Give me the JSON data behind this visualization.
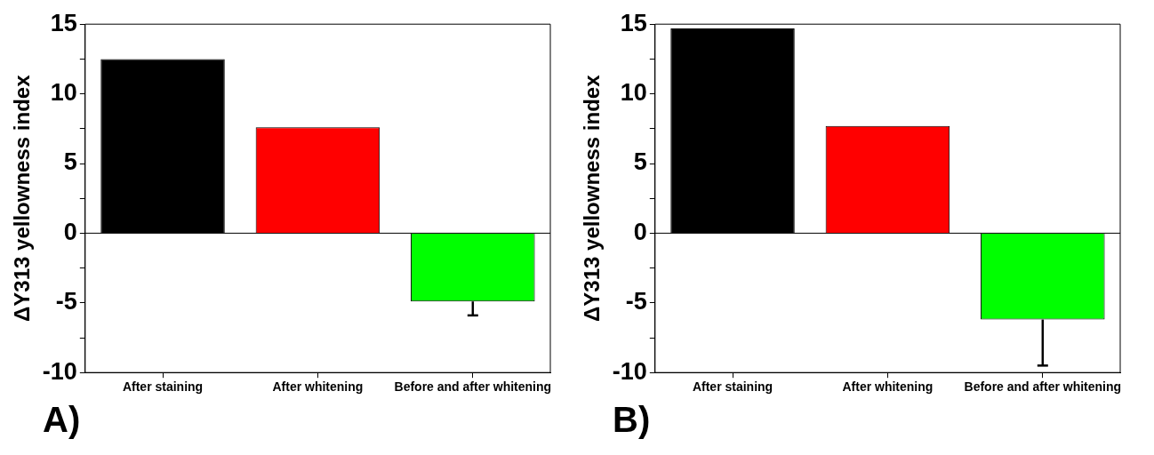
{
  "chart_data": [
    {
      "type": "bar",
      "ylabel": "ΔY313 yellowness index",
      "categories": [
        "After staining",
        "After whitening",
        "Before and after whitening"
      ],
      "values": [
        12.5,
        7.6,
        -4.9
      ],
      "colors": [
        "#000000",
        "#ff0000",
        "#00ff00"
      ],
      "errors": [
        null,
        null,
        [
          -5.9,
          -4.9
        ]
      ],
      "ylim": [
        -10,
        15
      ],
      "yticks": [
        -10,
        {
          "value": -7.5,
          "label": null
        },
        -5,
        {
          "value": -2.5,
          "label": null
        },
        0,
        {
          "value": 2.5,
          "label": null
        },
        5,
        {
          "value": 7.5,
          "label": null
        },
        10,
        {
          "value": 12.5,
          "label": null
        },
        15
      ],
      "ref_lines": [
        {
          "axis": "y",
          "value": 0,
          "color": "#000000"
        }
      ],
      "grid": false,
      "legend": false,
      "annotations": [
        "A)"
      ]
    },
    {
      "type": "bar",
      "ylabel": "ΔY313 yellowness index",
      "categories": [
        "After staining",
        "After whitening",
        "Before and after whitening"
      ],
      "values": [
        14.7,
        7.7,
        -6.2
      ],
      "colors": [
        "#000000",
        "#ff0000",
        "#00ff00"
      ],
      "errors": [
        null,
        null,
        [
          -9.5,
          -6.2
        ]
      ],
      "ylim": [
        -10,
        15
      ],
      "yticks": [
        -10,
        {
          "value": -7.5,
          "label": null
        },
        -5,
        {
          "value": -2.5,
          "label": null
        },
        0,
        {
          "value": 2.5,
          "label": null
        },
        5,
        {
          "value": 7.5,
          "label": null
        },
        10,
        {
          "value": 12.5,
          "label": null
        },
        15
      ],
      "ref_lines": [
        {
          "axis": "y",
          "value": 0,
          "color": "#000000"
        }
      ],
      "grid": false,
      "legend": false,
      "annotations": [
        "B)"
      ]
    }
  ]
}
